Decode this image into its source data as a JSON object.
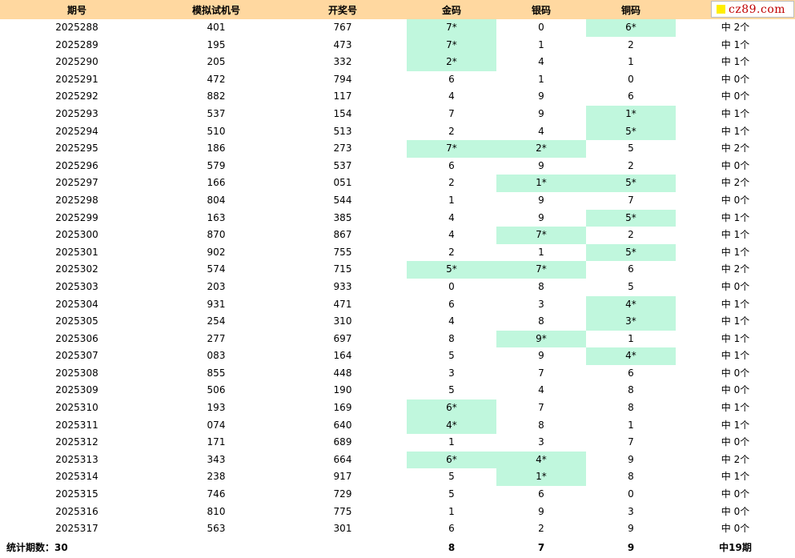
{
  "headers": [
    "期号",
    "模拟试机号",
    "开奖号",
    "金码",
    "银码",
    "铜码",
    ""
  ],
  "logo_text": "cz89.com",
  "rows": [
    {
      "period": "2025288",
      "sim": "401",
      "draw": "767",
      "gold": "7*",
      "silver": "0",
      "bronze": "6*",
      "result": "中 2个"
    },
    {
      "period": "2025289",
      "sim": "195",
      "draw": "473",
      "gold": "7*",
      "silver": "1",
      "bronze": "2",
      "result": "中 1个"
    },
    {
      "period": "2025290",
      "sim": "205",
      "draw": "332",
      "gold": "2*",
      "silver": "4",
      "bronze": "1",
      "result": "中 1个"
    },
    {
      "period": "2025291",
      "sim": "472",
      "draw": "794",
      "gold": "6",
      "silver": "1",
      "bronze": "0",
      "result": "中 0个"
    },
    {
      "period": "2025292",
      "sim": "882",
      "draw": "117",
      "gold": "4",
      "silver": "9",
      "bronze": "6",
      "result": "中 0个"
    },
    {
      "period": "2025293",
      "sim": "537",
      "draw": "154",
      "gold": "7",
      "silver": "9",
      "bronze": "1*",
      "result": "中 1个"
    },
    {
      "period": "2025294",
      "sim": "510",
      "draw": "513",
      "gold": "2",
      "silver": "4",
      "bronze": "5*",
      "result": "中 1个"
    },
    {
      "period": "2025295",
      "sim": "186",
      "draw": "273",
      "gold": "7*",
      "silver": "2*",
      "bronze": "5",
      "result": "中 2个"
    },
    {
      "period": "2025296",
      "sim": "579",
      "draw": "537",
      "gold": "6",
      "silver": "9",
      "bronze": "2",
      "result": "中 0个"
    },
    {
      "period": "2025297",
      "sim": "166",
      "draw": "051",
      "gold": "2",
      "silver": "1*",
      "bronze": "5*",
      "result": "中 2个"
    },
    {
      "period": "2025298",
      "sim": "804",
      "draw": "544",
      "gold": "1",
      "silver": "9",
      "bronze": "7",
      "result": "中 0个"
    },
    {
      "period": "2025299",
      "sim": "163",
      "draw": "385",
      "gold": "4",
      "silver": "9",
      "bronze": "5*",
      "result": "中 1个"
    },
    {
      "period": "2025300",
      "sim": "870",
      "draw": "867",
      "gold": "4",
      "silver": "7*",
      "bronze": "2",
      "result": "中 1个"
    },
    {
      "period": "2025301",
      "sim": "902",
      "draw": "755",
      "gold": "2",
      "silver": "1",
      "bronze": "5*",
      "result": "中 1个"
    },
    {
      "period": "2025302",
      "sim": "574",
      "draw": "715",
      "gold": "5*",
      "silver": "7*",
      "bronze": "6",
      "result": "中 2个"
    },
    {
      "period": "2025303",
      "sim": "203",
      "draw": "933",
      "gold": "0",
      "silver": "8",
      "bronze": "5",
      "result": "中 0个"
    },
    {
      "period": "2025304",
      "sim": "931",
      "draw": "471",
      "gold": "6",
      "silver": "3",
      "bronze": "4*",
      "result": "中 1个"
    },
    {
      "period": "2025305",
      "sim": "254",
      "draw": "310",
      "gold": "4",
      "silver": "8",
      "bronze": "3*",
      "result": "中 1个"
    },
    {
      "period": "2025306",
      "sim": "277",
      "draw": "697",
      "gold": "8",
      "silver": "9*",
      "bronze": "1",
      "result": "中 1个"
    },
    {
      "period": "2025307",
      "sim": "083",
      "draw": "164",
      "gold": "5",
      "silver": "9",
      "bronze": "4*",
      "result": "中 1个"
    },
    {
      "period": "2025308",
      "sim": "855",
      "draw": "448",
      "gold": "3",
      "silver": "7",
      "bronze": "6",
      "result": "中 0个"
    },
    {
      "period": "2025309",
      "sim": "506",
      "draw": "190",
      "gold": "5",
      "silver": "4",
      "bronze": "8",
      "result": "中 0个"
    },
    {
      "period": "2025310",
      "sim": "193",
      "draw": "169",
      "gold": "6*",
      "silver": "7",
      "bronze": "8",
      "result": "中 1个"
    },
    {
      "period": "2025311",
      "sim": "074",
      "draw": "640",
      "gold": "4*",
      "silver": "8",
      "bronze": "1",
      "result": "中 1个"
    },
    {
      "period": "2025312",
      "sim": "171",
      "draw": "689",
      "gold": "1",
      "silver": "3",
      "bronze": "7",
      "result": "中 0个"
    },
    {
      "period": "2025313",
      "sim": "343",
      "draw": "664",
      "gold": "6*",
      "silver": "4*",
      "bronze": "9",
      "result": "中 2个"
    },
    {
      "period": "2025314",
      "sim": "238",
      "draw": "917",
      "gold": "5",
      "silver": "1*",
      "bronze": "8",
      "result": "中 1个"
    },
    {
      "period": "2025315",
      "sim": "746",
      "draw": "729",
      "gold": "5",
      "silver": "6",
      "bronze": "0",
      "result": "中 0个"
    },
    {
      "period": "2025316",
      "sim": "810",
      "draw": "775",
      "gold": "1",
      "silver": "9",
      "bronze": "3",
      "result": "中 0个"
    },
    {
      "period": "2025317",
      "sim": "563",
      "draw": "301",
      "gold": "6",
      "silver": "2",
      "bronze": "9",
      "result": "中 0个"
    }
  ],
  "footer": {
    "label": "统计期数：30",
    "gold_total": "8",
    "silver_total": "7",
    "bronze_total": "9",
    "hit_total": "中19期"
  },
  "colors": {
    "header_bg": "#ffd8a0",
    "hit_bg": "#c0f7dd",
    "logo_text": "#c00000",
    "logo_square": "#ffee00"
  }
}
